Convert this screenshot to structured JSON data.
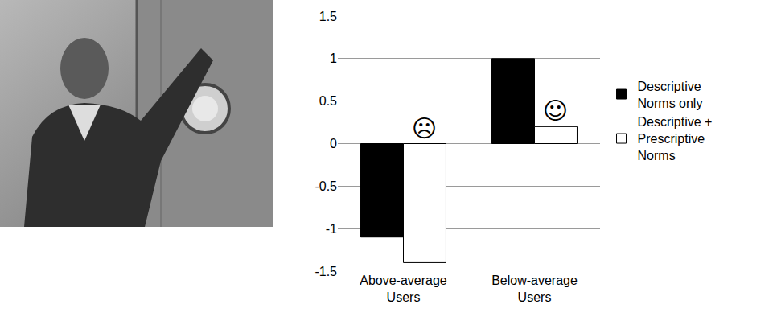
{
  "chart_data": {
    "type": "bar",
    "categories": [
      "Above-average Users",
      "Below-average Users"
    ],
    "series": [
      {
        "name": "Descriptive Norms only",
        "color": "#000000",
        "values": [
          -1.1,
          1.0
        ]
      },
      {
        "name": "Descriptive + Prescriptive Norms",
        "color": "#ffffff",
        "values": [
          -1.4,
          0.2
        ]
      }
    ],
    "annotations": [
      {
        "text": "☹",
        "category": "Above-average Users",
        "series": "Descriptive + Prescriptive Norms"
      },
      {
        "text": "☺",
        "category": "Below-average Users",
        "series": "Descriptive + Prescriptive Norms"
      }
    ],
    "ylim": [
      -1.5,
      1.5
    ],
    "yticks": [
      -1.5,
      -1,
      -0.5,
      0,
      0.5,
      1,
      1.5
    ],
    "grid": true,
    "legend": "right"
  }
}
